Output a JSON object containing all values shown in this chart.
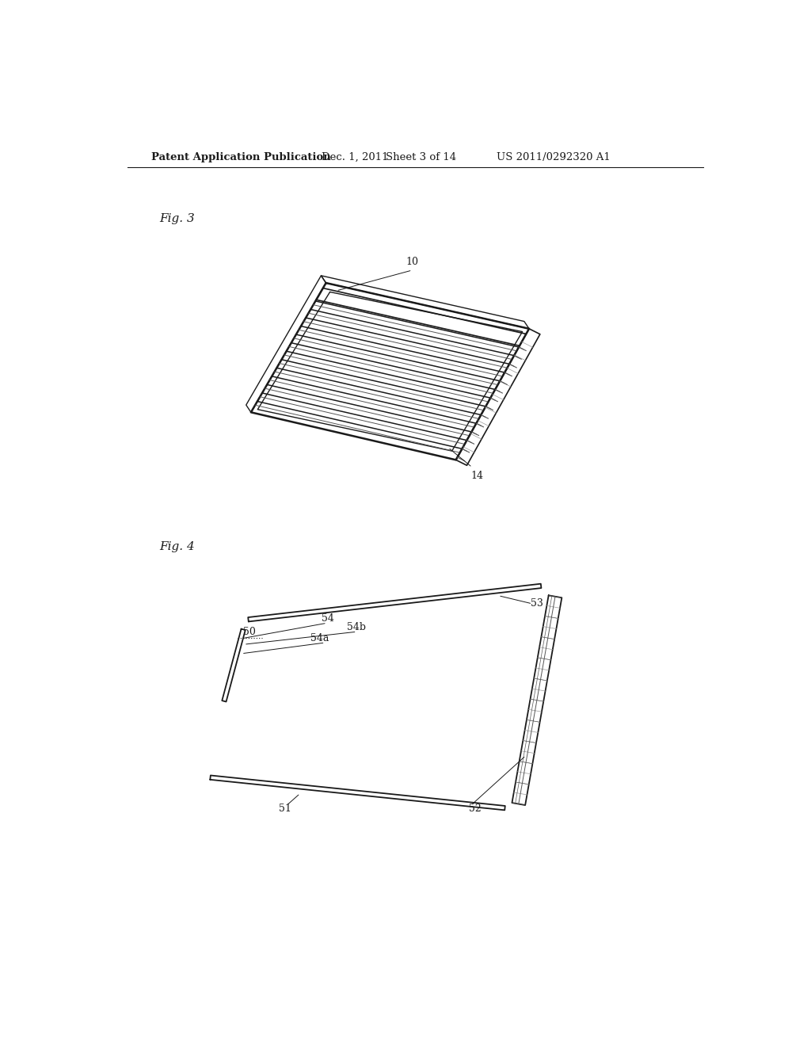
{
  "bg_color": "#ffffff",
  "header_text": "Patent Application Publication",
  "header_date": "Dec. 1, 2011",
  "header_sheet": "Sheet 3 of 14",
  "header_patent": "US 2011/0292320 A1",
  "fig3_label": "Fig. 3",
  "fig4_label": "Fig. 4",
  "label_10": "10",
  "label_14": "14",
  "label_50": "50",
  "label_51": "51",
  "label_52": "52",
  "label_53": "53",
  "label_54": "54",
  "label_54a": "54a",
  "label_54b": "54b",
  "line_color": "#1a1a1a",
  "light_line_color": "#999999",
  "medium_line_color": "#555555",
  "n_lamps": 13
}
